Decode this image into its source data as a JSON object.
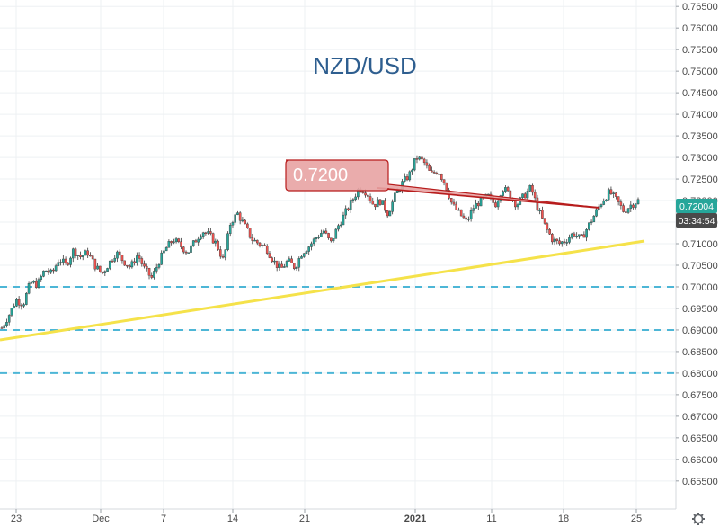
{
  "chart_data": {
    "type": "candlestick",
    "title": "NZD/USD",
    "y_axis": {
      "ylim": [
        0.6485,
        0.7665
      ],
      "ticks": [
        0.765,
        0.76,
        0.755,
        0.75,
        0.745,
        0.74,
        0.735,
        0.73,
        0.725,
        0.72,
        0.715,
        0.71,
        0.705,
        0.7,
        0.695,
        0.69,
        0.685,
        0.68,
        0.675,
        0.67,
        0.665,
        0.66,
        0.655
      ],
      "tick_labels": [
        "0.76500",
        "0.76000",
        "0.75500",
        "0.75000",
        "0.74500",
        "0.74000",
        "0.73500",
        "0.73000",
        "0.72500",
        "0.72000",
        "0.71500",
        "0.71000",
        "0.70500",
        "0.70000",
        "0.69500",
        "0.69000",
        "0.68500",
        "0.68000",
        "0.67500",
        "0.67000",
        "0.66500",
        "0.66000",
        "0.65500"
      ]
    },
    "x_axis": {
      "tick_labels": [
        "23",
        "Dec",
        "7",
        "14",
        "21",
        "2021",
        "11",
        "18",
        "25"
      ]
    },
    "price_path": [
      0.6905,
      0.6935,
      0.697,
      0.696,
      0.701,
      0.7005,
      0.704,
      0.703,
      0.7065,
      0.705,
      0.7085,
      0.707,
      0.708,
      0.705,
      0.703,
      0.7055,
      0.708,
      0.706,
      0.7045,
      0.7075,
      0.704,
      0.702,
      0.706,
      0.709,
      0.711,
      0.7095,
      0.708,
      0.7105,
      0.713,
      0.712,
      0.71,
      0.706,
      0.715,
      0.717,
      0.714,
      0.711,
      0.71,
      0.709,
      0.706,
      0.704,
      0.706,
      0.7045,
      0.708,
      0.7095,
      0.7115,
      0.713,
      0.71,
      0.714,
      0.717,
      0.72,
      0.723,
      0.722,
      0.719,
      0.72,
      0.717,
      0.721,
      0.724,
      0.726,
      0.73,
      0.729,
      0.726,
      0.727,
      0.724,
      0.719,
      0.717,
      0.715,
      0.7185,
      0.72,
      0.721,
      0.719,
      0.723,
      0.7215,
      0.719,
      0.721,
      0.723,
      0.718,
      0.714,
      0.711,
      0.71,
      0.711,
      0.7125,
      0.711,
      0.714,
      0.717,
      0.72,
      0.722,
      0.72,
      0.7175,
      0.719,
      0.72
    ],
    "last_price_label": "0.72004",
    "countdown_label": "03:34:54",
    "price_badge_color": "#26a69a",
    "countdown_badge_color": "#4a4a4a",
    "annotation": {
      "text": "0.7200",
      "callout_fill": "#e8a3a3",
      "callout_stroke": "#b71c1c",
      "line_color": "#b71c1c"
    },
    "trendline": {
      "color": "#f5e24a"
    },
    "horizontal_levels": [
      0.7,
      0.69,
      0.68
    ],
    "level_color": "#4db6d6",
    "up_color": "#26a69a",
    "down_color": "#ef5350",
    "grid": true
  },
  "footer": {
    "settings_icon": "gear-icon"
  }
}
